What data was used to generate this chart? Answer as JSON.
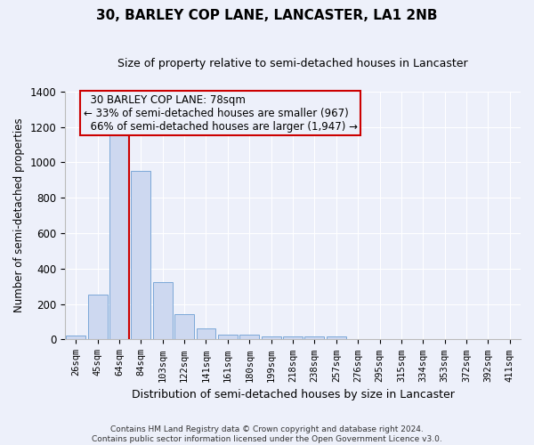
{
  "title": "30, BARLEY COP LANE, LANCASTER, LA1 2NB",
  "subtitle": "Size of property relative to semi-detached houses in Lancaster",
  "xlabel": "Distribution of semi-detached houses by size in Lancaster",
  "ylabel": "Number of semi-detached properties",
  "categories": [
    "26sqm",
    "45sqm",
    "64sqm",
    "84sqm",
    "103sqm",
    "122sqm",
    "141sqm",
    "161sqm",
    "180sqm",
    "199sqm",
    "218sqm",
    "238sqm",
    "257sqm",
    "276sqm",
    "295sqm",
    "315sqm",
    "334sqm",
    "353sqm",
    "372sqm",
    "392sqm",
    "411sqm"
  ],
  "bar_heights": [
    20,
    255,
    1160,
    950,
    325,
    145,
    65,
    25,
    25,
    15,
    15,
    15,
    15,
    0,
    0,
    0,
    0,
    0,
    0,
    0,
    0
  ],
  "bar_color": "#cdd8f0",
  "bar_edgecolor": "#7ba8d8",
  "vline_bin_index": 2,
  "vline_color": "#cc0000",
  "annotation_box_edgecolor": "#cc0000",
  "annotation_label": "30 BARLEY COP LANE: 78sqm",
  "smaller_pct": 33,
  "smaller_count": 967,
  "larger_pct": 66,
  "larger_count": 1947,
  "ylim": [
    0,
    1400
  ],
  "yticks": [
    0,
    200,
    400,
    600,
    800,
    1000,
    1200,
    1400
  ],
  "background_color": "#edf0fa",
  "grid_color": "#ffffff",
  "title_fontsize": 11,
  "subtitle_fontsize": 9,
  "footer_line1": "Contains HM Land Registry data © Crown copyright and database right 2024.",
  "footer_line2": "Contains public sector information licensed under the Open Government Licence v3.0."
}
